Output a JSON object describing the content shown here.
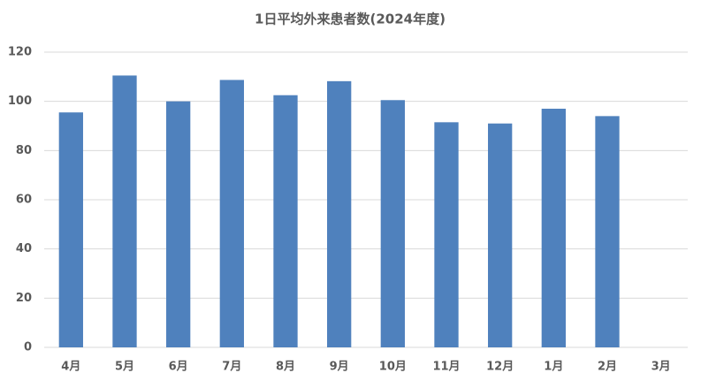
{
  "chart_data": {
    "type": "bar",
    "title": "1日平均外来患者数(2024年度)",
    "categories": [
      "4月",
      "5月",
      "6月",
      "7月",
      "8月",
      "9月",
      "10月",
      "11月",
      "12月",
      "1月",
      "2月",
      "3月"
    ],
    "values": [
      95.5,
      110.5,
      100,
      108.7,
      102.5,
      108.2,
      100.5,
      91.5,
      91,
      97,
      94,
      null
    ],
    "color": "#4f81bd",
    "ylim": [
      0,
      120
    ],
    "yticks": [
      0,
      20,
      40,
      60,
      80,
      100,
      120
    ],
    "grid": true
  }
}
